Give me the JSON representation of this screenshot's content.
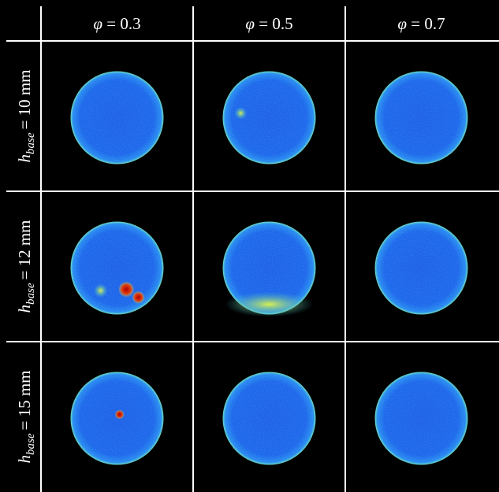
{
  "columns": [
    {
      "symbol": "φ",
      "rest": "= 0.3"
    },
    {
      "symbol": "φ",
      "rest": "= 0.5"
    },
    {
      "symbol": "φ",
      "rest": "= 0.7"
    }
  ],
  "rows": [
    {
      "symbol": "h",
      "subscript": "base",
      "rest": "= 10 mm"
    },
    {
      "symbol": "h",
      "subscript": "base",
      "rest": "= 12 mm"
    },
    {
      "symbol": "h",
      "subscript": "base",
      "rest": "= 15 mm"
    }
  ]
}
